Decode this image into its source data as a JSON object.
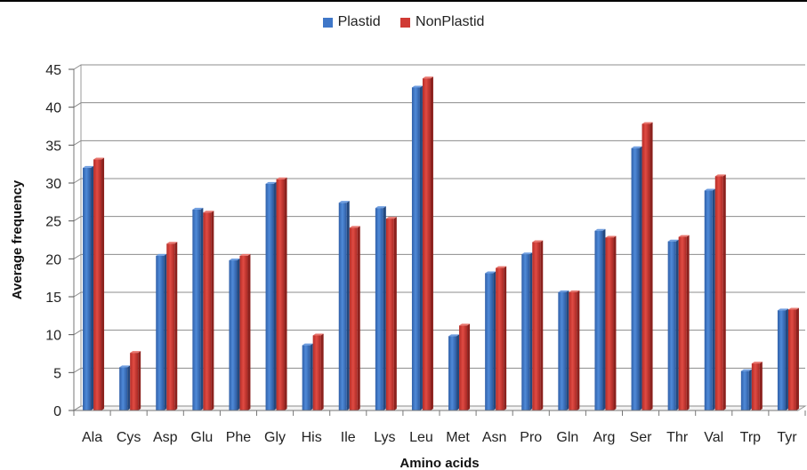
{
  "chart_data": {
    "type": "bar",
    "title": "",
    "xlabel": "Amino acids",
    "ylabel": "Average frequency",
    "ylim": [
      0,
      45
    ],
    "y_ticks": [
      "0",
      "5",
      "10",
      "15",
      "20",
      "25",
      "30",
      "35",
      "40",
      "45"
    ],
    "grid": true,
    "legend_position": "top-center",
    "categories": [
      "Ala",
      "Cys",
      "Asp",
      "Glu",
      "Phe",
      "Gly",
      "His",
      "Ile",
      "Lys",
      "Leu",
      "Met",
      "Asn",
      "Pro",
      "Gln",
      "Arg",
      "Ser",
      "Thr",
      "Val",
      "Trp",
      "Tyr"
    ],
    "series": [
      {
        "name": "Plastid",
        "color": "#3F77C8",
        "values": [
          32.0,
          5.7,
          20.4,
          26.5,
          19.8,
          29.9,
          8.6,
          27.4,
          26.7,
          42.6,
          9.8,
          18.1,
          20.6,
          15.6,
          23.7,
          34.6,
          22.3,
          29.0,
          5.2,
          13.2
        ]
      },
      {
        "name": "NonPlastid",
        "color": "#D03A34",
        "values": [
          33.1,
          7.6,
          22.0,
          26.1,
          20.4,
          30.5,
          9.9,
          24.1,
          25.3,
          43.8,
          11.2,
          18.8,
          22.2,
          15.6,
          22.8,
          37.8,
          22.9,
          30.9,
          6.2,
          13.3
        ]
      }
    ]
  }
}
